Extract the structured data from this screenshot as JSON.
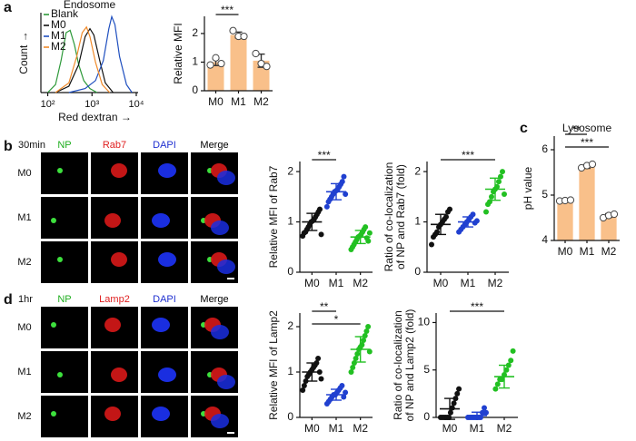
{
  "panel_labels": [
    "a",
    "b",
    "c",
    "d"
  ],
  "image_grids": [
    {
      "time": "30min",
      "channels": [
        "NP",
        "Rab7",
        "DAPI",
        "Merge"
      ],
      "channel_colors": [
        "#1fae1f",
        "#e02020",
        "#2030d0",
        "#000000"
      ],
      "rows": [
        "M0",
        "M1",
        "M2"
      ]
    },
    {
      "time": "1hr",
      "channels": [
        "NP",
        "Lamp2",
        "DAPI",
        "Merge"
      ],
      "channel_colors": [
        "#1fae1f",
        "#e02020",
        "#2030d0",
        "#000000"
      ],
      "rows": [
        "M0",
        "M1",
        "M2"
      ]
    }
  ],
  "chart_data": [
    {
      "type": "line",
      "title": "Endosome",
      "xlabel": "Red dextran →",
      "ylabel": "Count →",
      "xscale": "log",
      "xlim": [
        70,
        11000
      ],
      "ylim": [
        0,
        100
      ],
      "xticks": [
        {
          "value": 100,
          "label": "10²"
        },
        {
          "value": 1000,
          "label": "10³"
        },
        {
          "value": 10000,
          "label": "10⁴"
        }
      ],
      "series": [
        {
          "name": "Blank",
          "color": "#2e9a3a",
          "x": [
            100,
            150,
            200,
            260,
            320,
            400,
            500,
            650,
            900,
            1300
          ],
          "values": [
            0,
            10,
            40,
            75,
            78,
            60,
            35,
            15,
            5,
            0
          ]
        },
        {
          "name": "M0",
          "color": "#111111",
          "x": [
            150,
            300,
            500,
            700,
            900,
            1100,
            1500,
            2000,
            3000
          ],
          "values": [
            0,
            8,
            35,
            70,
            80,
            72,
            40,
            12,
            0
          ]
        },
        {
          "name": "M1",
          "color": "#1f4fbf",
          "x": [
            300,
            700,
            1200,
            1800,
            2400,
            2800,
            3300,
            4200,
            6000,
            8000
          ],
          "values": [
            0,
            5,
            15,
            40,
            80,
            95,
            85,
            45,
            10,
            0
          ]
        },
        {
          "name": "M2",
          "color": "#f08a2a",
          "x": [
            150,
            300,
            450,
            600,
            750,
            900,
            1200,
            1700,
            2500
          ],
          "values": [
            0,
            12,
            45,
            75,
            82,
            70,
            38,
            10,
            0
          ]
        }
      ]
    },
    {
      "type": "bar",
      "ylabel": "Relative MFI",
      "categories": [
        "M0",
        "M1",
        "M2"
      ],
      "color": "#f9c08a",
      "values": [
        1.0,
        1.95,
        1.05
      ],
      "errors": [
        0.12,
        0.1,
        0.23
      ],
      "points": [
        [
          0.9,
          1.15,
          0.95
        ],
        [
          2.1,
          1.9,
          1.9
        ],
        [
          1.3,
          0.95,
          0.85
        ]
      ],
      "ylim": [
        0,
        2.6
      ],
      "yticks": [
        0,
        1,
        2
      ],
      "significance": [
        {
          "text": "***",
          "from": 0,
          "to": 1
        }
      ]
    },
    {
      "type": "dot",
      "ylabel_lines": [
        "Relative MFI of Rab7"
      ],
      "categories": [
        "M0",
        "M1",
        "M2"
      ],
      "colors": [
        "#111111",
        "#2040d0",
        "#22c022"
      ],
      "points": [
        [
          0.72,
          0.78,
          0.8,
          0.85,
          0.9,
          0.95,
          1.0,
          1.02,
          1.05,
          1.1,
          1.15,
          1.2,
          1.25,
          0.75
        ],
        [
          1.3,
          1.4,
          1.45,
          1.5,
          1.55,
          1.6,
          1.62,
          1.65,
          1.7,
          1.75,
          1.8,
          1.9,
          1.55
        ],
        [
          0.45,
          0.5,
          0.55,
          0.6,
          0.65,
          0.7,
          0.72,
          0.75,
          0.8,
          0.85,
          0.9,
          0.68,
          0.62,
          0.78
        ]
      ],
      "means": [
        1.0,
        1.6,
        0.7
      ],
      "sds": [
        0.17,
        0.16,
        0.13
      ],
      "ylim": [
        0,
        2.2
      ],
      "yticks": [
        0,
        1,
        2
      ],
      "significance": [
        {
          "text": "***",
          "from": 0,
          "to": 1
        }
      ]
    },
    {
      "type": "dot",
      "ylabel_lines": [
        "Ratio of co-localization",
        "of NP and Rab7 (fold)"
      ],
      "categories": [
        "M0",
        "M1",
        "M2"
      ],
      "colors": [
        "#111111",
        "#2040d0",
        "#22c022"
      ],
      "points": [
        [
          0.55,
          0.7,
          0.75,
          0.8,
          0.9,
          0.95,
          1.0,
          1.05,
          1.1,
          1.2,
          1.25
        ],
        [
          0.8,
          0.85,
          0.9,
          0.95,
          1.0,
          1.05,
          1.1,
          1.15,
          0.98,
          1.02
        ],
        [
          1.2,
          1.35,
          1.4,
          1.5,
          1.6,
          1.65,
          1.7,
          1.8,
          1.9,
          2.0,
          1.55
        ]
      ],
      "means": [
        0.95,
        1.0,
        1.65
      ],
      "sds": [
        0.2,
        0.1,
        0.22
      ],
      "ylim": [
        0,
        2.2
      ],
      "yticks": [
        0,
        1,
        2
      ],
      "significance": [
        {
          "text": "***",
          "from": 0,
          "to": 2
        }
      ]
    },
    {
      "type": "bar",
      "title": "Lysosome",
      "ylabel": "pH value",
      "categories": [
        "M0",
        "M1",
        "M2"
      ],
      "color": "#f9c08a",
      "values": [
        4.88,
        5.63,
        4.55
      ],
      "errors": [
        0.01,
        0.04,
        0.04
      ],
      "points": [
        [
          4.87,
          4.88,
          4.89
        ],
        [
          5.6,
          5.65,
          5.68
        ],
        [
          4.5,
          4.55,
          4.58
        ]
      ],
      "ylim": [
        4,
        6.3
      ],
      "yticks": [
        4,
        5,
        6
      ],
      "significance": [
        {
          "text": "**",
          "from": 0,
          "to": 1
        },
        {
          "text": "***",
          "from": 0,
          "to": 2
        }
      ]
    },
    {
      "type": "dot",
      "ylabel_lines": [
        "Relative MFI of Lamp2"
      ],
      "categories": [
        "M0",
        "M1",
        "M2"
      ],
      "colors": [
        "#111111",
        "#2040d0",
        "#22c022"
      ],
      "points": [
        [
          0.6,
          0.7,
          0.8,
          0.9,
          0.95,
          1.0,
          1.05,
          1.1,
          1.15,
          1.2,
          1.3,
          1.0,
          0.85
        ],
        [
          0.3,
          0.35,
          0.4,
          0.45,
          0.5,
          0.5,
          0.55,
          0.6,
          0.65,
          0.7,
          0.45,
          0.55
        ],
        [
          1.0,
          1.1,
          1.2,
          1.3,
          1.4,
          1.5,
          1.55,
          1.6,
          1.7,
          1.8,
          1.9,
          2.0,
          1.45
        ]
      ],
      "means": [
        1.0,
        0.5,
        1.5
      ],
      "sds": [
        0.2,
        0.12,
        0.28
      ],
      "ylim": [
        0,
        2.3
      ],
      "yticks": [
        0,
        1,
        2
      ],
      "significance": [
        {
          "text": "**",
          "from": 0,
          "to": 1
        },
        {
          "text": "*",
          "from": 0,
          "to": 2
        }
      ]
    },
    {
      "type": "dot",
      "ylabel_lines": [
        "Ratio of co-localization",
        "of NP and Lamp2 (fold)"
      ],
      "categories": [
        "M0",
        "M1",
        "M2"
      ],
      "colors": [
        "#111111",
        "#2040d0",
        "#22c022"
      ],
      "points": [
        [
          0,
          0,
          0,
          0,
          0,
          0,
          0.5,
          1,
          1.5,
          2,
          2.5,
          3
        ],
        [
          0,
          0,
          0,
          0,
          0,
          0,
          0,
          0,
          0.5,
          1,
          0.5
        ],
        [
          3,
          3.5,
          4,
          4,
          4.5,
          5,
          5.5,
          6,
          7
        ]
      ],
      "means": [
        0.9,
        0.2,
        4.3
      ],
      "sds": [
        1.1,
        0.35,
        1.2
      ],
      "ylim": [
        0,
        11
      ],
      "yticks": [
        0,
        5,
        10
      ],
      "significance": [
        {
          "text": "***",
          "from": 0,
          "to": 2
        }
      ]
    }
  ]
}
